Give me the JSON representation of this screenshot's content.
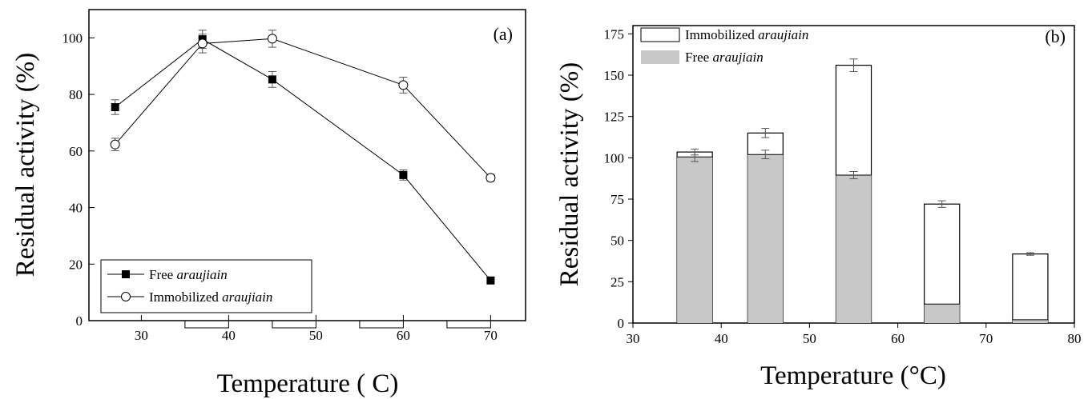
{
  "chart_data": [
    {
      "panel": "(a)",
      "type": "line",
      "xlabel": "Temperature ( C)",
      "ylabel": "Residual activity (%)",
      "xlim": [
        24,
        74
      ],
      "ylim": [
        0,
        110
      ],
      "xticks": [
        30,
        40,
        50,
        60,
        70
      ],
      "yticks": [
        0,
        20,
        40,
        60,
        80,
        100
      ],
      "legend_position": "bottom-left",
      "series": [
        {
          "name_plain": "Free ",
          "name_italic": "araujiain",
          "marker": "filled-square",
          "x": [
            27,
            37,
            45,
            60,
            70
          ],
          "y": [
            75.5,
            99.5,
            85.3,
            51.5,
            14.2
          ],
          "err": [
            2.6,
            3.2,
            2.8,
            1.8,
            0.8
          ]
        },
        {
          "name_plain": "Immobilized ",
          "name_italic": "araujiain",
          "marker": "open-circle",
          "x": [
            27,
            37,
            45,
            60,
            70
          ],
          "y": [
            62.3,
            98.0,
            99.7,
            83.3,
            50.5
          ],
          "err": [
            2.2,
            3.3,
            3.0,
            2.8,
            1.2
          ]
        }
      ]
    },
    {
      "panel": "(b)",
      "type": "bar",
      "xlabel": "Temperature (°C)",
      "ylabel": "Residual activity (%)",
      "xlim": [
        30,
        80
      ],
      "ylim": [
        0,
        180
      ],
      "xticks": [
        30,
        40,
        50,
        60,
        70,
        80
      ],
      "yticks": [
        0,
        25,
        50,
        75,
        100,
        125,
        150,
        175
      ],
      "legend_position": "top-left",
      "x": [
        37,
        45,
        55,
        65,
        75
      ],
      "series": [
        {
          "name_plain": "Immobilized ",
          "name_italic": "araujiain",
          "fill": "#ffffff",
          "values": [
            103.5,
            115.0,
            156.0,
            72.0,
            41.8
          ],
          "err": [
            1.8,
            2.8,
            3.8,
            2.0,
            0.8
          ]
        },
        {
          "name_plain": "Free ",
          "name_italic": "araujiain",
          "fill": "#c8c8c8",
          "values": [
            100.5,
            102.0,
            89.5,
            11.5,
            2.0
          ],
          "err": [
            2.8,
            2.6,
            2.2,
            0,
            0
          ]
        }
      ]
    }
  ]
}
